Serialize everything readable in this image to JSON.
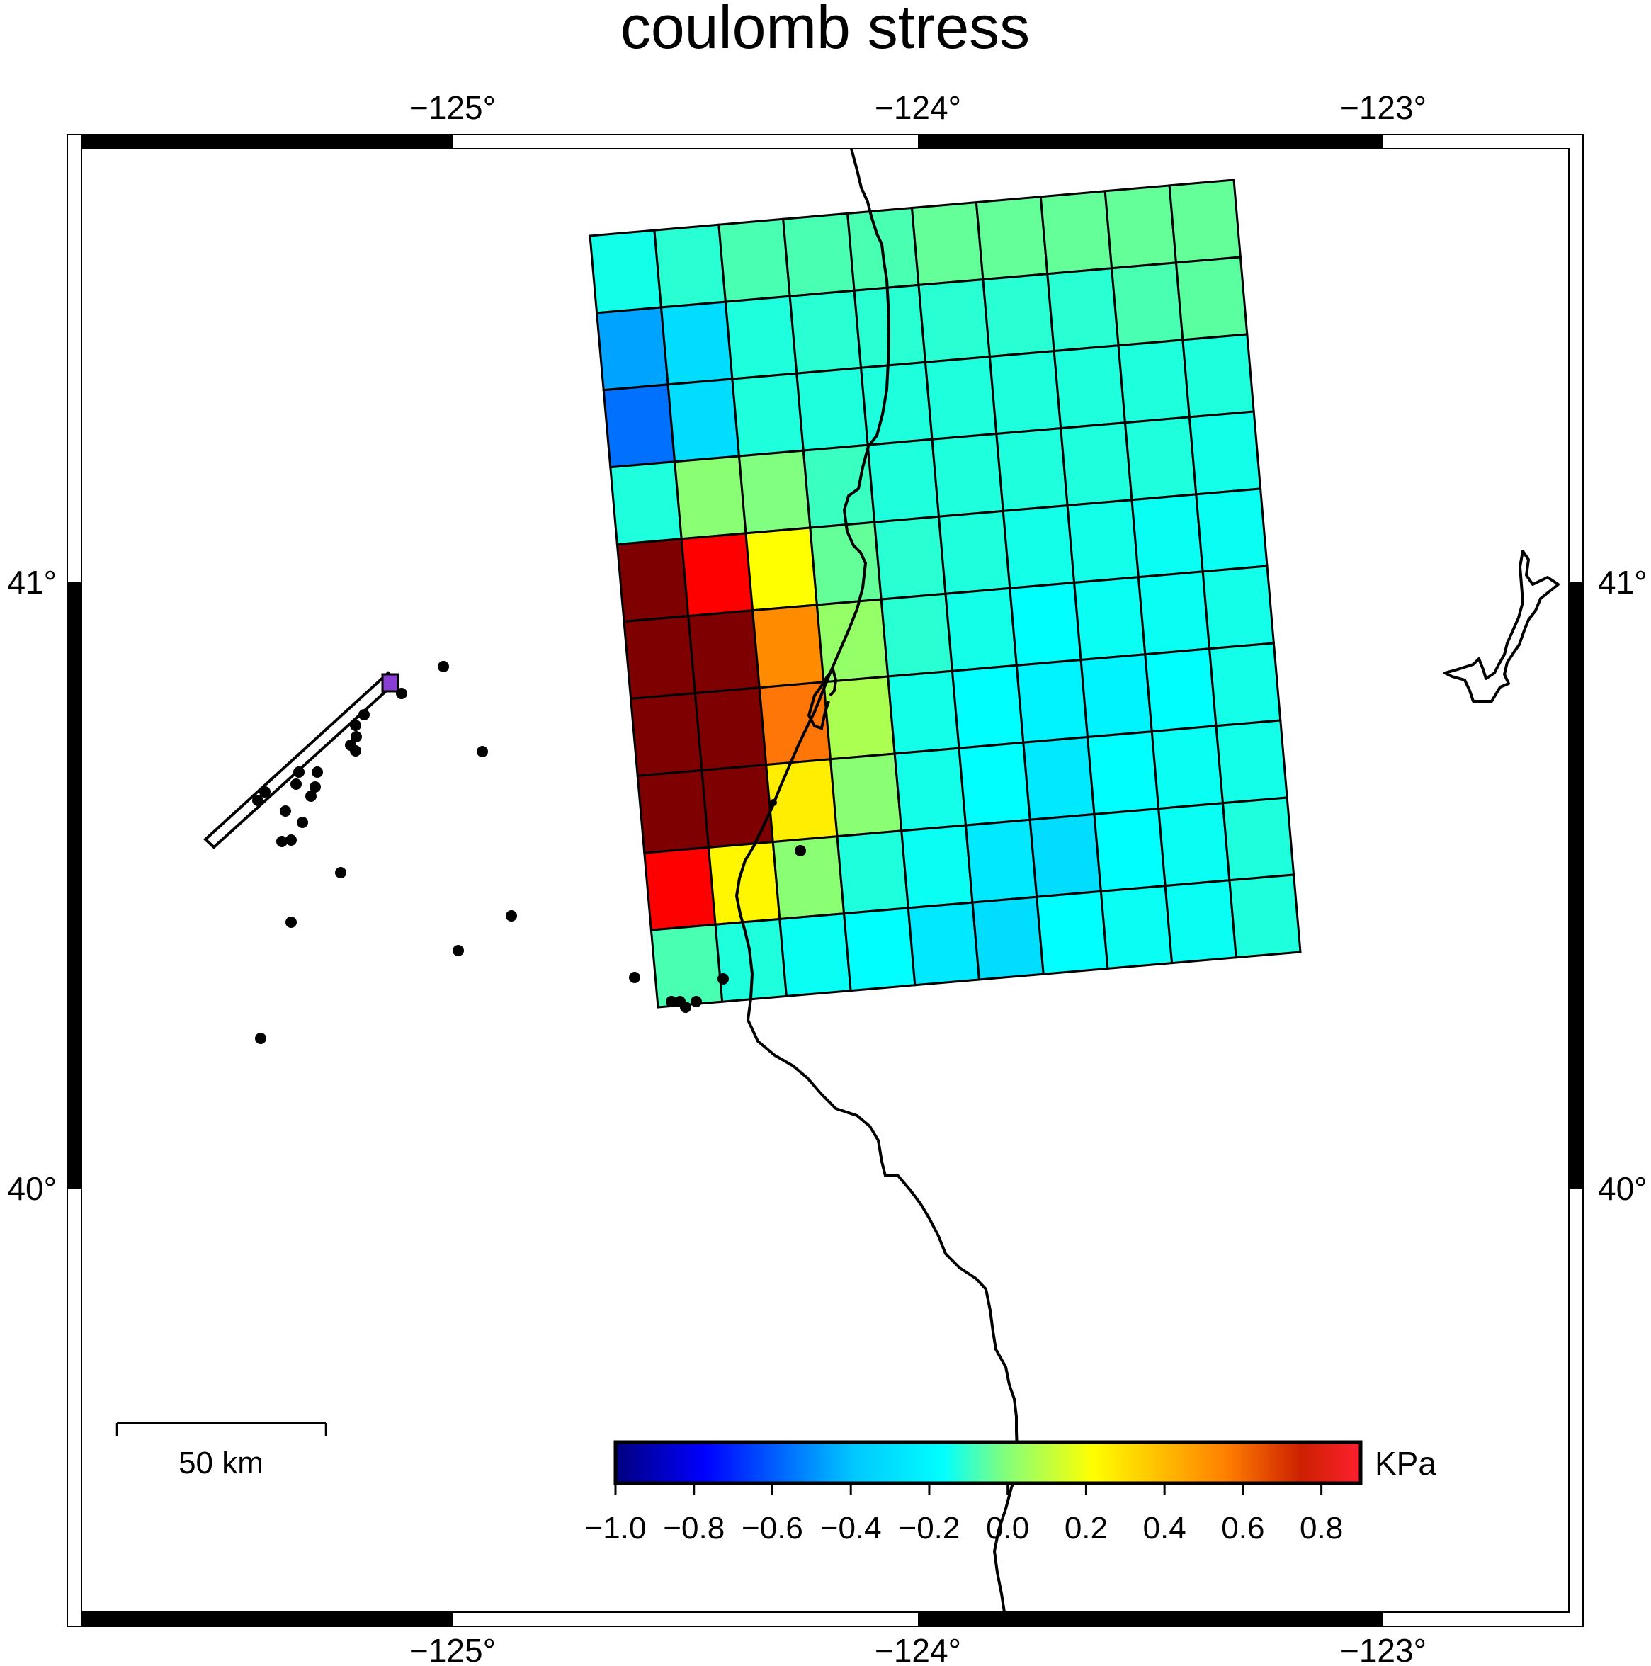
{
  "title": "coulomb stress",
  "axes": {
    "lon_ticks": [
      "−125°",
      "−124°",
      "−123°"
    ],
    "lat_ticks": [
      "41°",
      "40°"
    ]
  },
  "scale_bar": {
    "label": "50 km"
  },
  "colorbar": {
    "unit": "KPa",
    "min": -1.0,
    "max": 0.9,
    "ticks": [
      "−1.0",
      "−0.8",
      "−0.6",
      "−0.4",
      "−0.2",
      "0.0",
      "0.2",
      "0.4",
      "0.6",
      "0.8"
    ]
  },
  "stress_grid": {
    "rows": 10,
    "cols": 10,
    "values": [
      [
        -0.18,
        -0.14,
        -0.1,
        -0.1,
        -0.1,
        -0.06,
        -0.06,
        -0.06,
        -0.06,
        -0.06
      ],
      [
        -0.4,
        -0.28,
        -0.16,
        -0.14,
        -0.14,
        -0.14,
        -0.14,
        -0.14,
        -0.1,
        -0.08
      ],
      [
        -0.52,
        -0.28,
        -0.16,
        -0.16,
        -0.16,
        -0.16,
        -0.16,
        -0.16,
        -0.16,
        -0.16
      ],
      [
        -0.16,
        0.02,
        0.0,
        -0.12,
        -0.16,
        -0.16,
        -0.16,
        -0.16,
        -0.16,
        -0.18
      ],
      [
        0.9,
        0.72,
        0.24,
        -0.06,
        -0.14,
        -0.16,
        -0.18,
        -0.18,
        -0.2,
        -0.2
      ],
      [
        0.9,
        0.9,
        0.48,
        0.04,
        -0.14,
        -0.18,
        -0.22,
        -0.2,
        -0.2,
        -0.18
      ],
      [
        0.9,
        0.9,
        0.54,
        0.08,
        -0.18,
        -0.22,
        -0.24,
        -0.24,
        -0.22,
        -0.18
      ],
      [
        0.9,
        0.9,
        0.28,
        0.02,
        -0.18,
        -0.22,
        -0.26,
        -0.22,
        -0.2,
        -0.18
      ],
      [
        0.72,
        0.26,
        0.02,
        -0.16,
        -0.2,
        -0.26,
        -0.28,
        -0.22,
        -0.2,
        -0.16
      ],
      [
        -0.1,
        -0.16,
        -0.2,
        -0.22,
        -0.26,
        -0.28,
        -0.22,
        -0.2,
        -0.2,
        -0.16
      ]
    ]
  }
}
